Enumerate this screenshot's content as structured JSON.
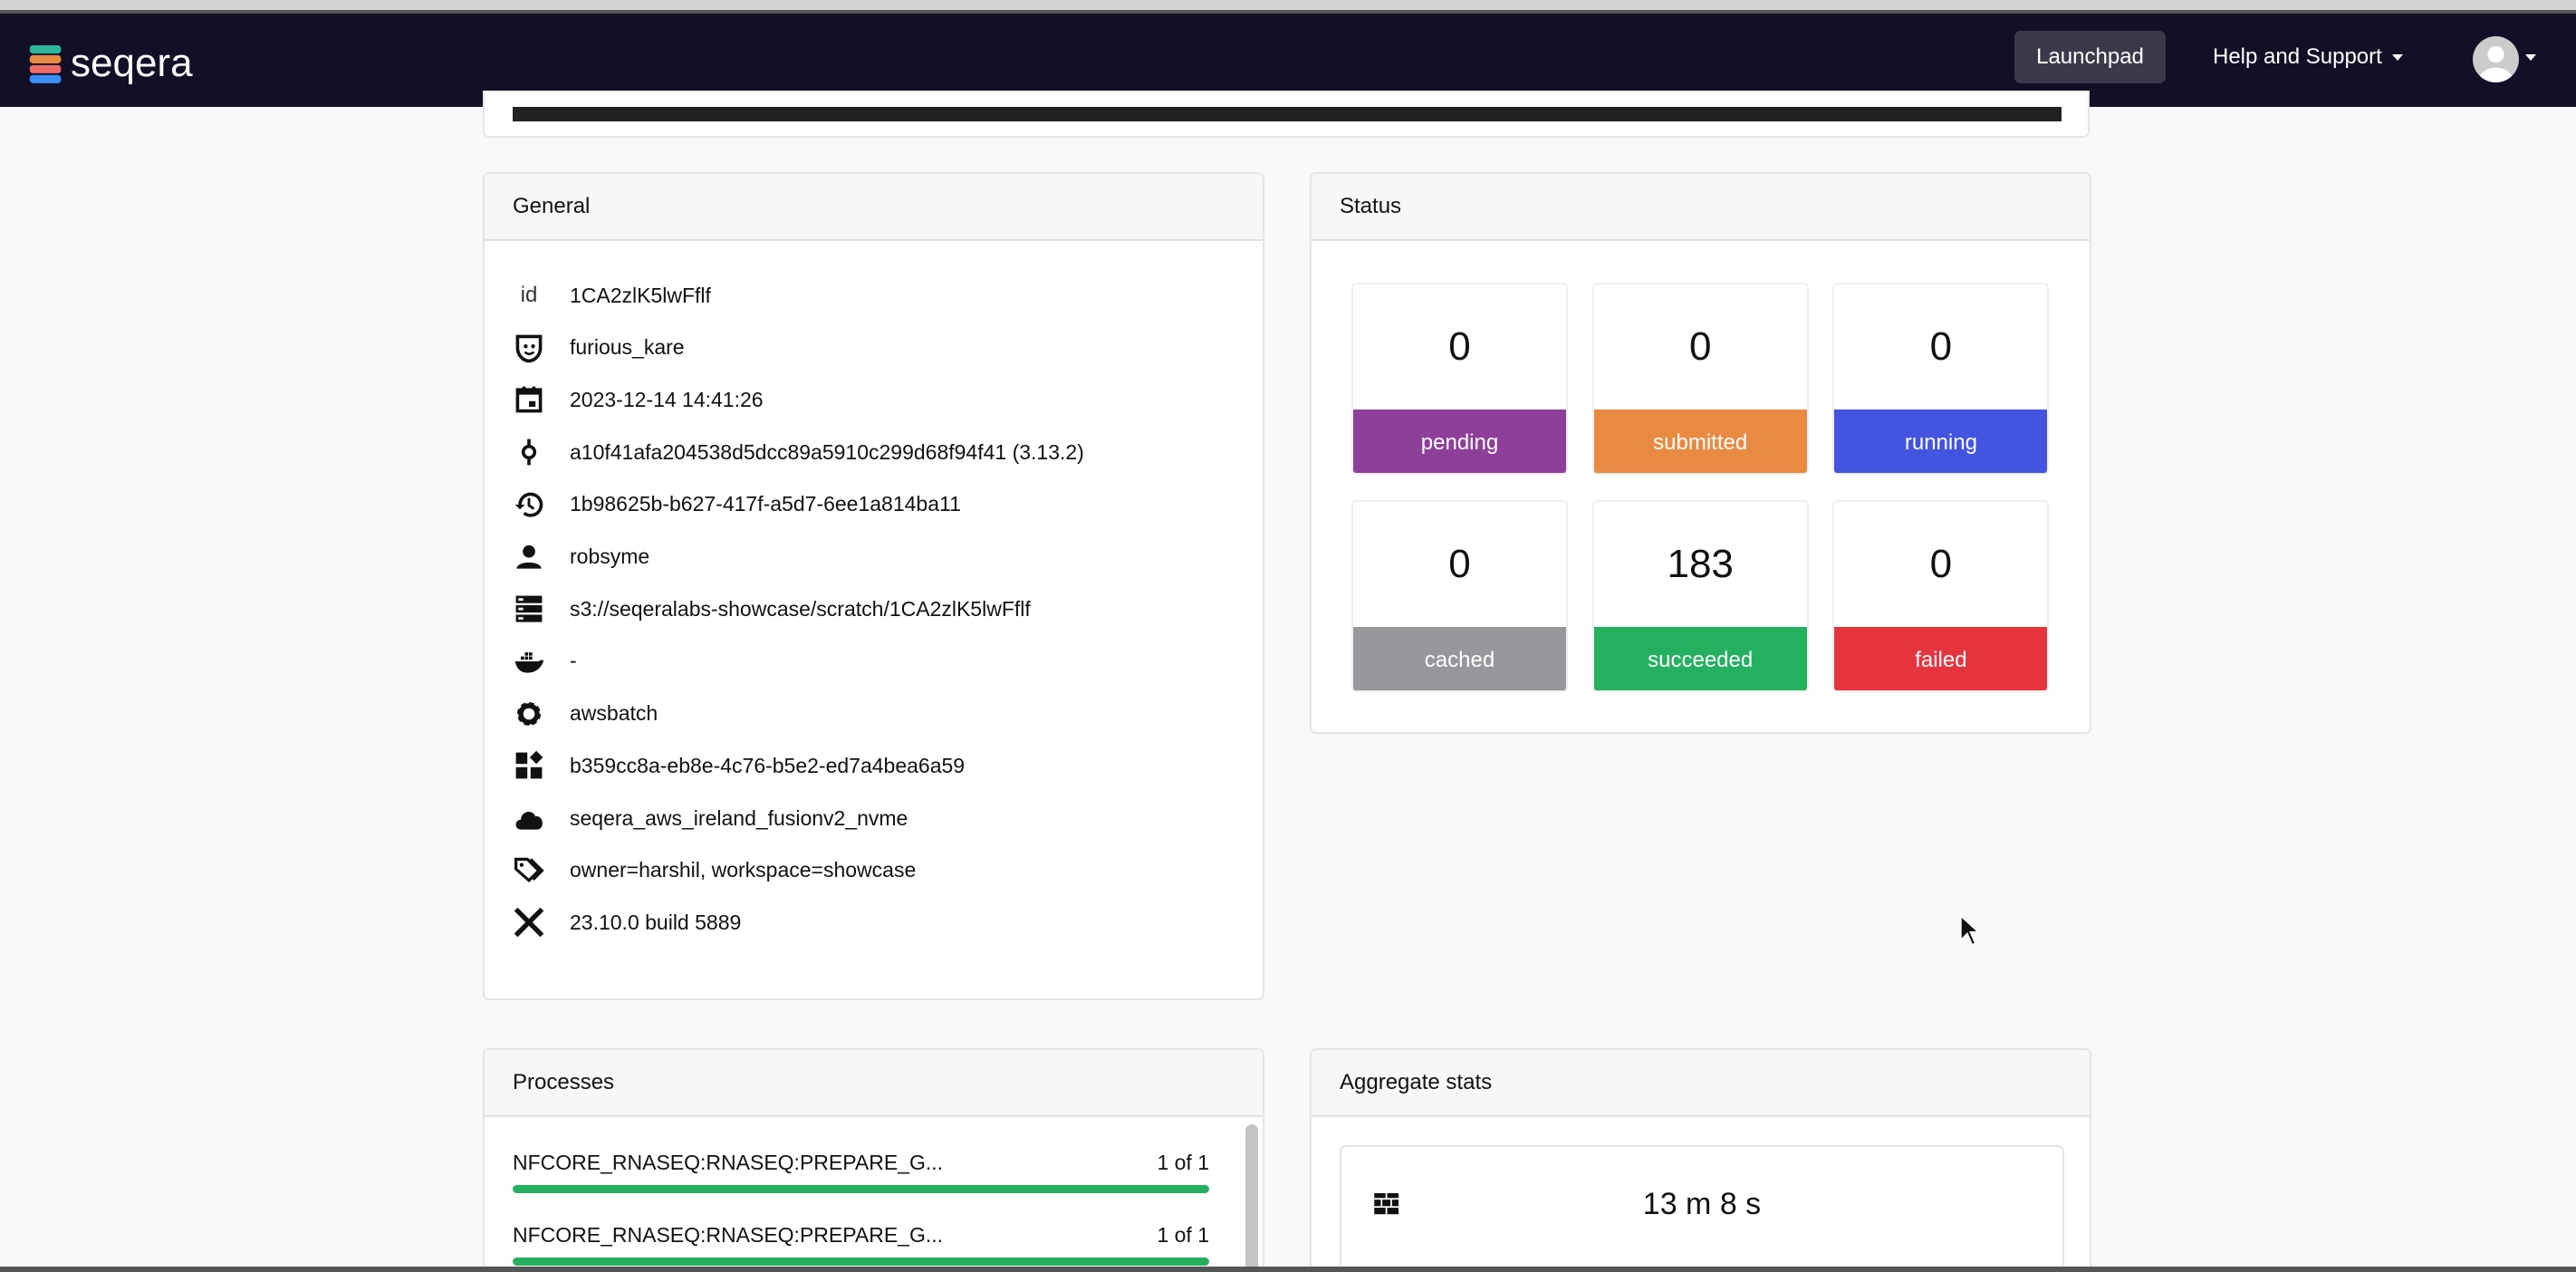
{
  "navbar": {
    "brand": "seqera",
    "launchpad": "Launchpad",
    "help": "Help and Support"
  },
  "general": {
    "title": "General",
    "rows": [
      {
        "icon": "id",
        "label": "id",
        "value": "1CA2zlK5lwFflf"
      },
      {
        "icon": "mask-icon",
        "value": "furious_kare"
      },
      {
        "icon": "calendar-icon",
        "value": "2023-12-14 14:41:26"
      },
      {
        "icon": "commit-icon",
        "value": "a10f41afa204538d5dcc89a5910c299d68f94f41 (3.13.2)"
      },
      {
        "icon": "history-icon",
        "value": "1b98625b-b627-417f-a5d7-6ee1a814ba11"
      },
      {
        "icon": "user-icon",
        "value": "robsyme"
      },
      {
        "icon": "storage-icon",
        "value": "s3://seqeralabs-showcase/scratch/1CA2zlK5lwFflf"
      },
      {
        "icon": "docker-icon",
        "value": "-"
      },
      {
        "icon": "gear-icon",
        "value": "awsbatch"
      },
      {
        "icon": "widgets-icon",
        "value": "b359cc8a-eb8e-4c76-b5e2-ed7a4bea6a59"
      },
      {
        "icon": "cloud-icon",
        "value": "seqera_aws_ireland_fusionv2_nvme"
      },
      {
        "icon": "tags-icon",
        "value": "owner=harshil, workspace=showcase"
      },
      {
        "icon": "nextflow-icon",
        "value": "23.10.0 build 5889"
      }
    ]
  },
  "status": {
    "title": "Status",
    "tiles": [
      {
        "count": "0",
        "label": "pending",
        "color": "#8e3f9a"
      },
      {
        "count": "0",
        "label": "submitted",
        "color": "#e98a42"
      },
      {
        "count": "0",
        "label": "running",
        "color": "#4354e0"
      },
      {
        "count": "0",
        "label": "cached",
        "color": "#96989c"
      },
      {
        "count": "183",
        "label": "succeeded",
        "color": "#24b05e"
      },
      {
        "count": "0",
        "label": "failed",
        "color": "#e6343f"
      }
    ]
  },
  "processes": {
    "title": "Processes",
    "items": [
      {
        "name": "NFCORE_RNASEQ:RNASEQ:PREPARE_G...",
        "progress": "1 of 1",
        "fraction": 1
      },
      {
        "name": "NFCORE_RNASEQ:RNASEQ:PREPARE_G...",
        "progress": "1 of 1",
        "fraction": 1
      }
    ]
  },
  "aggregate": {
    "title": "Aggregate stats",
    "wall_time": "13 m 8 s"
  }
}
